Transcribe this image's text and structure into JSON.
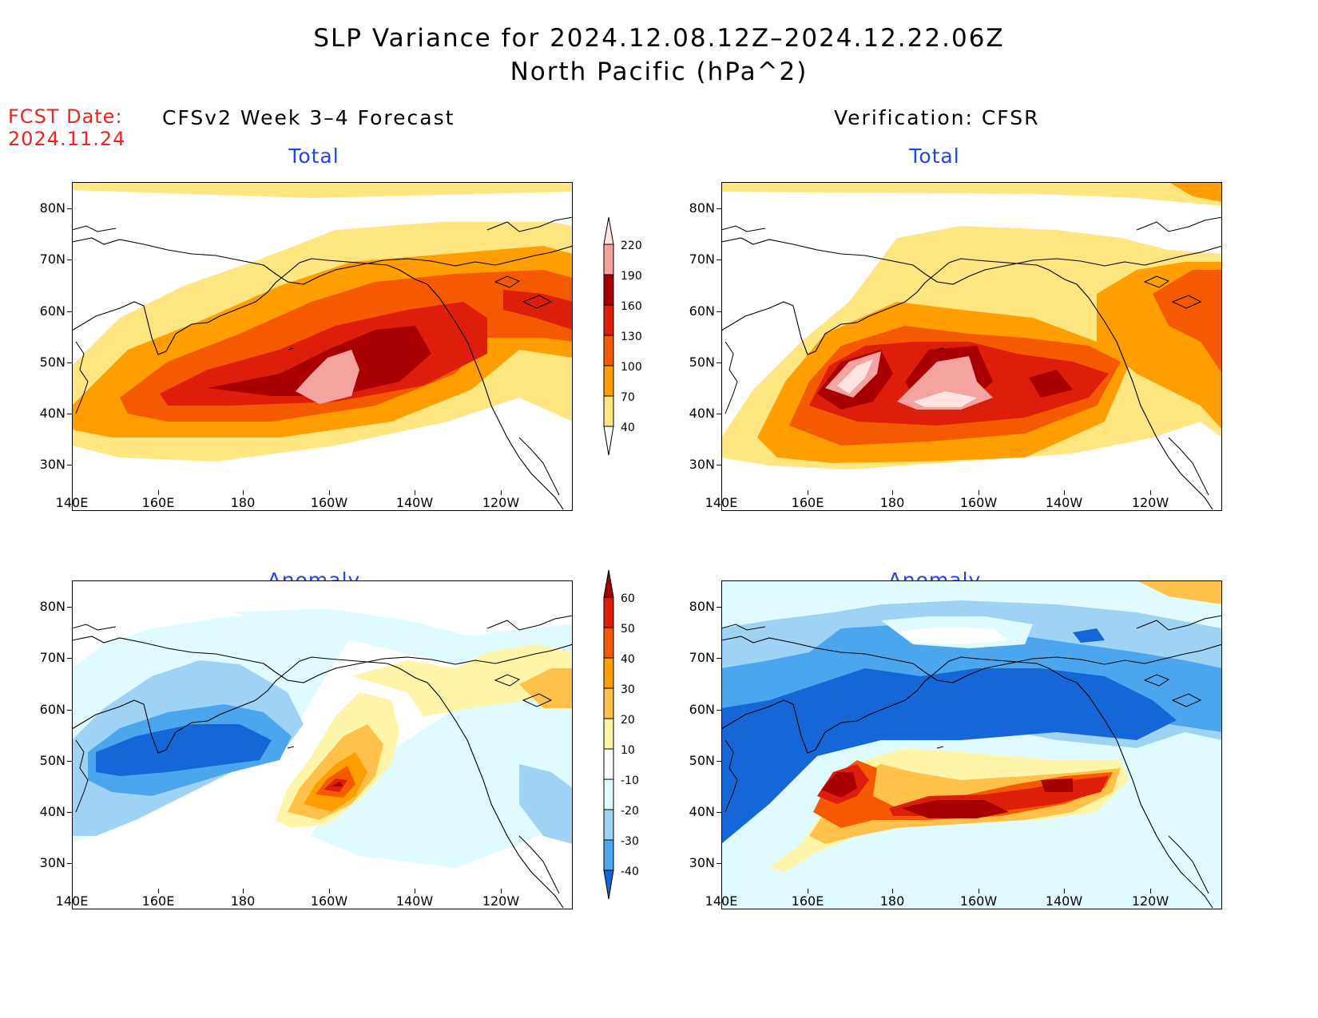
{
  "header": {
    "title_line1": "SLP Variance for 2024.12.08.12Z–2024.12.22.06Z",
    "title_line2": "North Pacific (hPa^2)"
  },
  "fcst_date": {
    "label": "FCST Date:",
    "value": "2024.11.24"
  },
  "columns": {
    "left": "CFSv2 Week 3–4 Forecast",
    "right": "Verification: CFSR"
  },
  "panel_titles": {
    "total": "Total",
    "anomaly": "Anomaly"
  },
  "axes": {
    "lat_labels": [
      "80N",
      "70N",
      "60N",
      "50N",
      "40N",
      "30N"
    ],
    "lon_labels": [
      "140E",
      "160E",
      "180",
      "160W",
      "140W",
      "120W"
    ]
  },
  "legend_total": {
    "labels": [
      "220",
      "190",
      "160",
      "130",
      "100",
      "70",
      "40"
    ],
    "colors": [
      "#ffe4e1",
      "#f5a3a1",
      "#a80000",
      "#dc1e0a",
      "#f55a00",
      "#ff9e00",
      "#ffe680"
    ]
  },
  "legend_anomaly": {
    "labels": [
      "60",
      "50",
      "40",
      "30",
      "20",
      "10",
      "-10",
      "-20",
      "-30",
      "-40"
    ],
    "colors_high": [
      "#a80000",
      "#dc1e0a",
      "#f55a00",
      "#ff9e00",
      "#ffc14a",
      "#fff5a8"
    ],
    "colors_low": [
      "#e0fbff",
      "#9fd3f5",
      "#4ba6ee",
      "#1566d6"
    ]
  }
}
